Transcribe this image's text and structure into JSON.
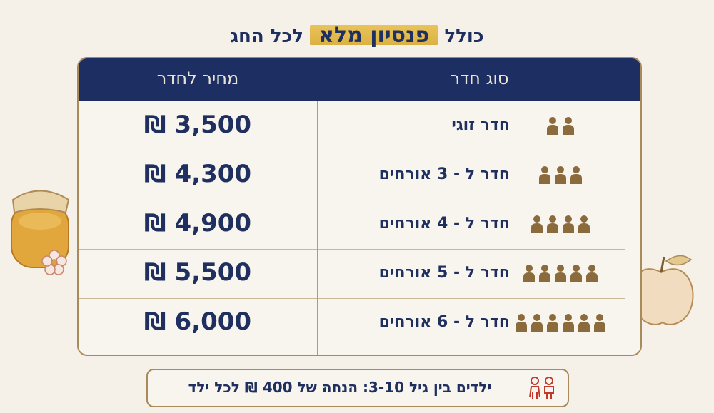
{
  "header": {
    "title_start": "כולל",
    "title_highlight": "פנסיון מלא",
    "title_end": "לכל החג"
  },
  "table": {
    "columns": [
      "סוג חדר",
      "מחיר לחדר"
    ],
    "rows": [
      [
        "חדר זוגי",
        "3,500 ₪"
      ],
      [
        "חדר ל - 3 אורחים",
        "4,300 ₪"
      ],
      [
        "חדר ל - 4 אורחים",
        "4,900 ₪"
      ],
      [
        "חדר ל - 5 אורחים",
        "5,500 ₪"
      ],
      [
        "חדר ל - 6 אורחים",
        "6,000 ₪"
      ]
    ]
  },
  "footer": {
    "note": "ילדים בין גיל 3-10: הנחה של 400 ₪ לכל ילד"
  }
}
